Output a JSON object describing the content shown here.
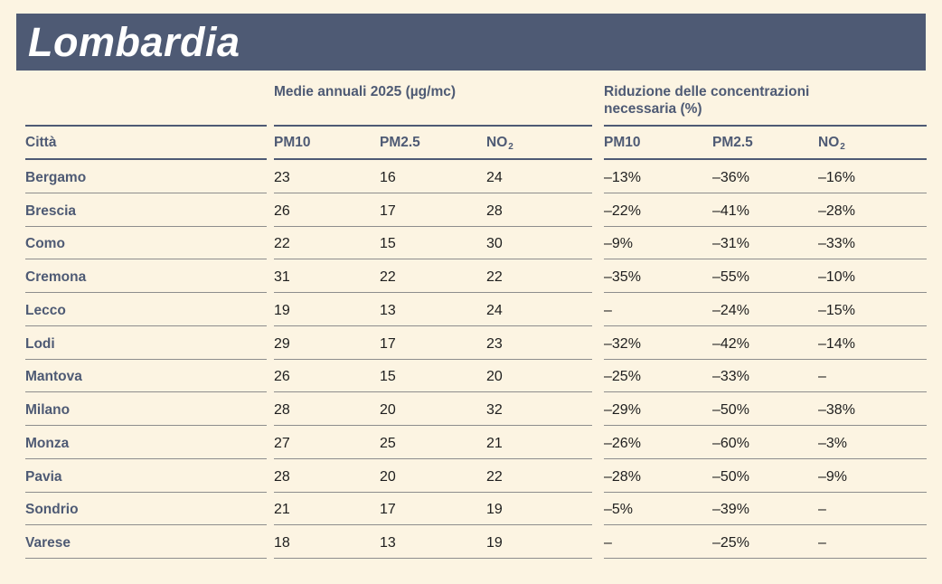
{
  "theme": {
    "background": "#fcf4e2",
    "accent_navy": "#4e5a74",
    "separator_gray": "#8d8d8d",
    "title_text": "#ffffff",
    "value_text": "#1e1e1e"
  },
  "header": {
    "title": "Lombardia"
  },
  "table": {
    "group1_header": "Medie annuali 2025 (µg/mc)",
    "group2_header_line1": "Riduzione delle concentrazioni",
    "group2_header_line2": "necessaria (%)",
    "city_column_header": "Città",
    "columns": [
      {
        "label": "PM10"
      },
      {
        "label": "PM2.5"
      },
      {
        "label": "NO",
        "sub": "2"
      }
    ],
    "rows": [
      {
        "city": "Bergamo",
        "pm10": "23",
        "pm25": "16",
        "no2": "24",
        "red_pm10": "–13%",
        "red_pm25": "–36%",
        "red_no2": "–16%"
      },
      {
        "city": "Brescia",
        "pm10": "26",
        "pm25": "17",
        "no2": "28",
        "red_pm10": "–22%",
        "red_pm25": "–41%",
        "red_no2": "–28%"
      },
      {
        "city": "Como",
        "pm10": "22",
        "pm25": "15",
        "no2": "30",
        "red_pm10": "–9%",
        "red_pm25": "–31%",
        "red_no2": "–33%"
      },
      {
        "city": "Cremona",
        "pm10": "31",
        "pm25": "22",
        "no2": "22",
        "red_pm10": "–35%",
        "red_pm25": "–55%",
        "red_no2": "–10%"
      },
      {
        "city": "Lecco",
        "pm10": "19",
        "pm25": "13",
        "no2": "24",
        "red_pm10": "–",
        "red_pm25": "–24%",
        "red_no2": "–15%"
      },
      {
        "city": "Lodi",
        "pm10": "29",
        "pm25": "17",
        "no2": "23",
        "red_pm10": "–32%",
        "red_pm25": "–42%",
        "red_no2": "–14%"
      },
      {
        "city": "Mantova",
        "pm10": "26",
        "pm25": "15",
        "no2": "20",
        "red_pm10": "–25%",
        "red_pm25": "–33%",
        "red_no2": "–"
      },
      {
        "city": "Milano",
        "pm10": "28",
        "pm25": "20",
        "no2": "32",
        "red_pm10": "–29%",
        "red_pm25": "–50%",
        "red_no2": "–38%"
      },
      {
        "city": "Monza",
        "pm10": "27",
        "pm25": "25",
        "no2": "21",
        "red_pm10": "–26%",
        "red_pm25": "–60%",
        "red_no2": "–3%"
      },
      {
        "city": "Pavia",
        "pm10": "28",
        "pm25": "20",
        "no2": "22",
        "red_pm10": "–28%",
        "red_pm25": "–50%",
        "red_no2": "–9%"
      },
      {
        "city": "Sondrio",
        "pm10": "21",
        "pm25": "17",
        "no2": "19",
        "red_pm10": "–5%",
        "red_pm25": "–39%",
        "red_no2": "–"
      },
      {
        "city": "Varese",
        "pm10": "18",
        "pm25": "13",
        "no2": "19",
        "red_pm10": "–",
        "red_pm25": "–25%",
        "red_no2": "–"
      }
    ]
  },
  "chart_data": {
    "type": "table",
    "title": "Lombardia",
    "row_header": "Città",
    "column_groups": [
      {
        "label": "Medie annuali 2025 (µg/mc)",
        "columns": [
          "PM10",
          "PM2.5",
          "NO2"
        ]
      },
      {
        "label": "Riduzione delle concentrazioni necessaria (%)",
        "columns": [
          "PM10",
          "PM2.5",
          "NO2"
        ]
      }
    ],
    "rows": [
      {
        "citta": "Bergamo",
        "medie_annuali_2025": {
          "pm10": 23,
          "pm25": 16,
          "no2": 24
        },
        "riduzione_necessaria_pct": {
          "pm10": -13,
          "pm25": -36,
          "no2": -16
        }
      },
      {
        "citta": "Brescia",
        "medie_annuali_2025": {
          "pm10": 26,
          "pm25": 17,
          "no2": 28
        },
        "riduzione_necessaria_pct": {
          "pm10": -22,
          "pm25": -41,
          "no2": -28
        }
      },
      {
        "citta": "Como",
        "medie_annuali_2025": {
          "pm10": 22,
          "pm25": 15,
          "no2": 30
        },
        "riduzione_necessaria_pct": {
          "pm10": -9,
          "pm25": -31,
          "no2": -33
        }
      },
      {
        "citta": "Cremona",
        "medie_annuali_2025": {
          "pm10": 31,
          "pm25": 22,
          "no2": 22
        },
        "riduzione_necessaria_pct": {
          "pm10": -35,
          "pm25": -55,
          "no2": -10
        }
      },
      {
        "citta": "Lecco",
        "medie_annuali_2025": {
          "pm10": 19,
          "pm25": 13,
          "no2": 24
        },
        "riduzione_necessaria_pct": {
          "pm10": null,
          "pm25": -24,
          "no2": -15
        }
      },
      {
        "citta": "Lodi",
        "medie_annuali_2025": {
          "pm10": 29,
          "pm25": 17,
          "no2": 23
        },
        "riduzione_necessaria_pct": {
          "pm10": -32,
          "pm25": -42,
          "no2": -14
        }
      },
      {
        "citta": "Mantova",
        "medie_annuali_2025": {
          "pm10": 26,
          "pm25": 15,
          "no2": 20
        },
        "riduzione_necessaria_pct": {
          "pm10": -25,
          "pm25": -33,
          "no2": null
        }
      },
      {
        "citta": "Milano",
        "medie_annuali_2025": {
          "pm10": 28,
          "pm25": 20,
          "no2": 32
        },
        "riduzione_necessaria_pct": {
          "pm10": -29,
          "pm25": -50,
          "no2": -38
        }
      },
      {
        "citta": "Monza",
        "medie_annuali_2025": {
          "pm10": 27,
          "pm25": 25,
          "no2": 21
        },
        "riduzione_necessaria_pct": {
          "pm10": -26,
          "pm25": -60,
          "no2": -3
        }
      },
      {
        "citta": "Pavia",
        "medie_annuali_2025": {
          "pm10": 28,
          "pm25": 20,
          "no2": 22
        },
        "riduzione_necessaria_pct": {
          "pm10": -28,
          "pm25": -50,
          "no2": -9
        }
      },
      {
        "citta": "Sondrio",
        "medie_annuali_2025": {
          "pm10": 21,
          "pm25": 17,
          "no2": 19
        },
        "riduzione_necessaria_pct": {
          "pm10": -5,
          "pm25": -39,
          "no2": null
        }
      },
      {
        "citta": "Varese",
        "medie_annuali_2025": {
          "pm10": 18,
          "pm25": 13,
          "no2": 19
        },
        "riduzione_necessaria_pct": {
          "pm10": null,
          "pm25": -25,
          "no2": null
        }
      }
    ]
  }
}
